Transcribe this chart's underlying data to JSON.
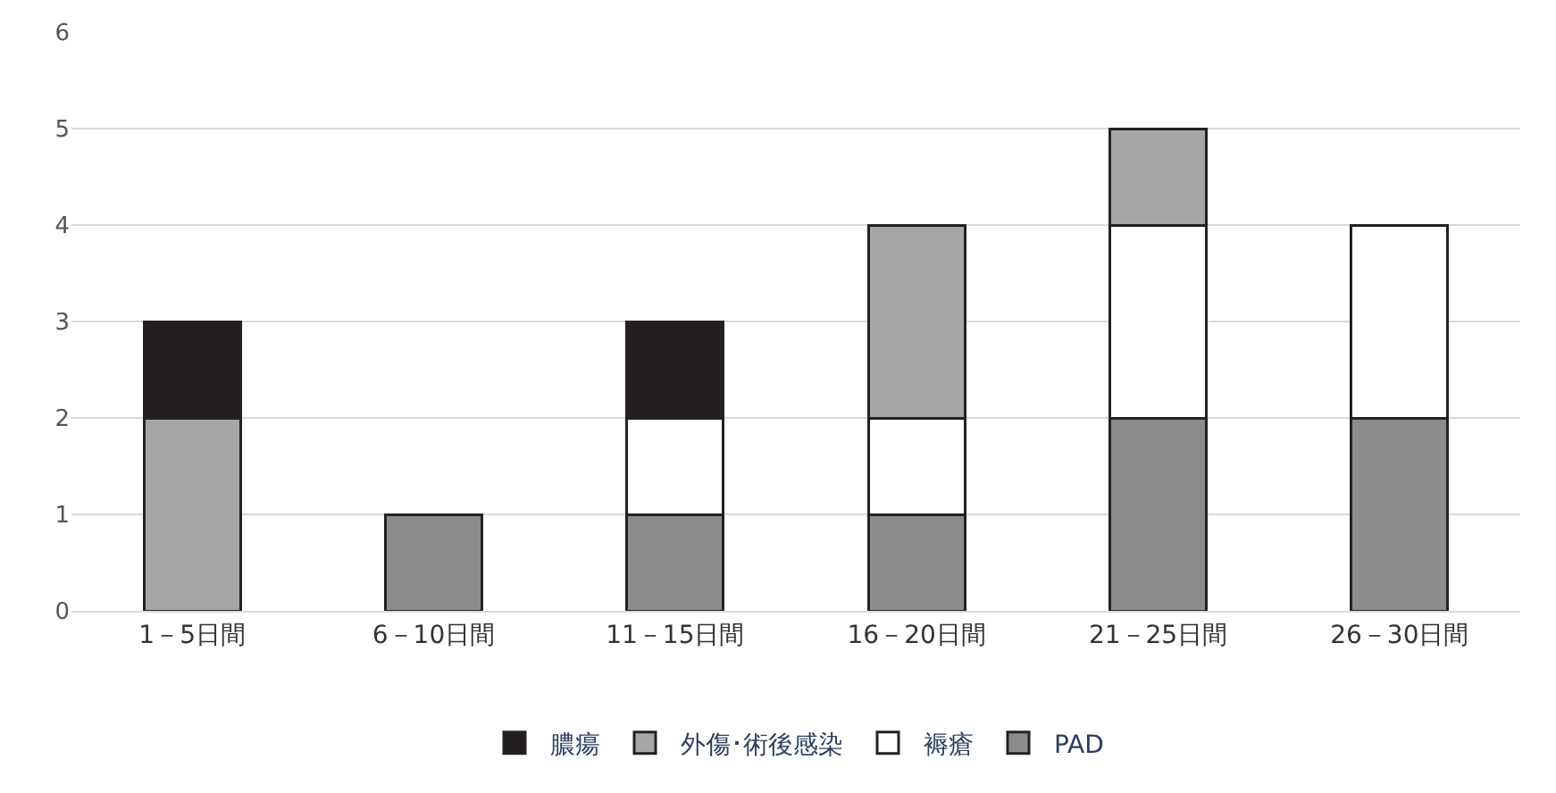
{
  "chart_data": {
    "type": "bar",
    "stacked": true,
    "categories": [
      "1－5日間",
      "6－10日間",
      "11－15日間",
      "16－20日間",
      "21－25日間",
      "26－30日間"
    ],
    "series": [
      {
        "name": "PAD",
        "color": "#8c8c8c",
        "values": [
          null,
          1,
          1,
          1,
          2,
          2
        ]
      },
      {
        "name": "褥瘡",
        "color": "#ffffff",
        "values": [
          null,
          null,
          1,
          1,
          2,
          2
        ]
      },
      {
        "name": "外傷･術後感染",
        "color": "#a6a6a6",
        "values": [
          2,
          null,
          null,
          2,
          1,
          null
        ]
      },
      {
        "name": "膿瘍",
        "color": "#231f20",
        "values": [
          1,
          null,
          1,
          null,
          null,
          null
        ]
      }
    ],
    "ylim": [
      0,
      6
    ],
    "yticks": [
      0,
      1,
      2,
      3,
      4,
      5,
      6
    ],
    "grid": "y",
    "legend": "bottom"
  }
}
